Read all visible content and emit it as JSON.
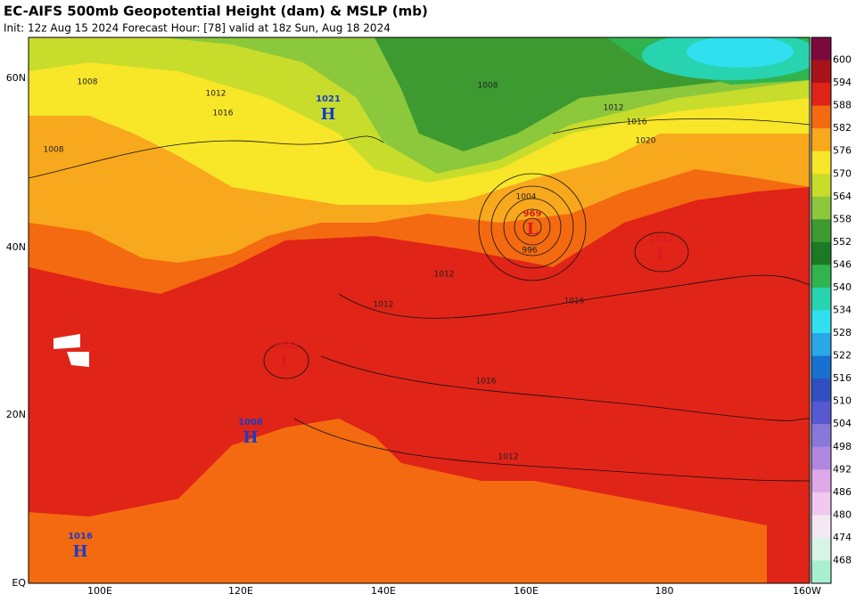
{
  "header": {
    "title": "EC-AIFS 500mb Geopotential Height (dam) & MSLP (mb)",
    "subtitle": "Init: 12z Aug 15 2024   Forecast Hour: [78]   valid at 18z Sun, Aug 18 2024"
  },
  "latitudes": [
    "60N",
    "40N",
    "20N",
    "EQ"
  ],
  "longitudes": [
    "100E",
    "120E",
    "140E",
    "160E",
    "180",
    "160W"
  ],
  "colorbar": {
    "labels": [
      "600",
      "594",
      "588",
      "582",
      "576",
      "570",
      "564",
      "558",
      "552",
      "546",
      "540",
      "534",
      "528",
      "522",
      "516",
      "510",
      "504",
      "498",
      "492",
      "486",
      "480",
      "474",
      "468"
    ],
    "colors": [
      "#7a0a3c",
      "#a8141a",
      "#e02418",
      "#f46a10",
      "#f8a81c",
      "#f8e628",
      "#c8dc2c",
      "#8cc83c",
      "#3c9a30",
      "#1c7a24",
      "#30b450",
      "#28d4b0",
      "#30e0f0",
      "#28a8e8",
      "#1870d0",
      "#3050c0",
      "#5858d0",
      "#8878d8",
      "#b088e0",
      "#e0a8e8",
      "#f0c8f0",
      "#f4e8f4",
      "#d8f4e8",
      "#a8f0d0"
    ]
  },
  "centers": [
    {
      "kind": "H",
      "value": "1021"
    },
    {
      "kind": "L",
      "value": "969"
    },
    {
      "kind": "L",
      "value": "1012"
    },
    {
      "kind": "L",
      "value": "1003"
    },
    {
      "kind": "H",
      "value": "1008"
    },
    {
      "kind": "H",
      "value": "1016"
    }
  ],
  "isobar_labels": [
    "1008",
    "1012",
    "1016",
    "1008",
    "1012",
    "1016",
    "1020",
    "1004",
    "996",
    "1012",
    "1016",
    "1012",
    "1016",
    "1012",
    "1008"
  ]
}
